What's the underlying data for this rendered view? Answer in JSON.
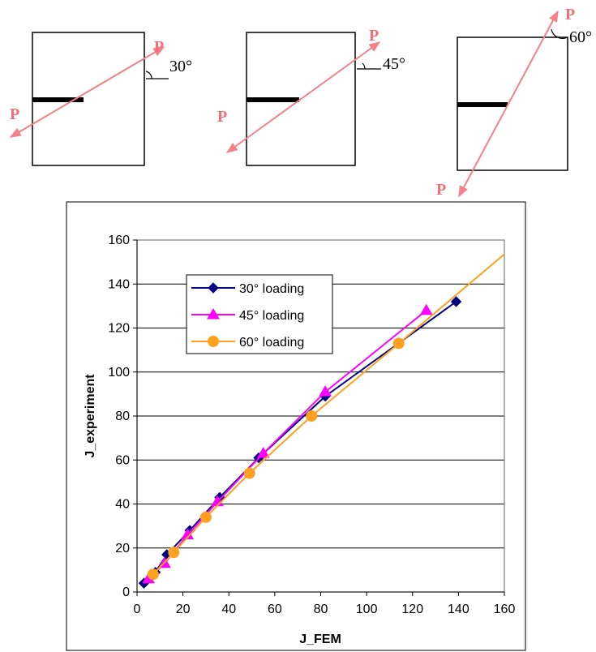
{
  "diagrams": [
    {
      "load_label_top": "P",
      "load_label_bottom": "P",
      "angle_label": "30°"
    },
    {
      "load_label_top": "P",
      "load_label_bottom": "P",
      "angle_label": "45°"
    },
    {
      "load_label_top": "P",
      "load_label_bottom": "P",
      "angle_label": "60°"
    }
  ],
  "colors": {
    "arrow": "#f4808a",
    "series_30": "#000080",
    "series_45": "#ff00ff",
    "series_60": "#ffa020",
    "crack": "#000000"
  },
  "chart_data": {
    "type": "line",
    "title": "",
    "xlabel": "J_FEM",
    "ylabel": "J_experiment",
    "xlim": [
      0,
      160
    ],
    "ylim": [
      0,
      160
    ],
    "xticks": [
      0,
      20,
      40,
      60,
      80,
      100,
      120,
      140,
      160
    ],
    "yticks": [
      0,
      20,
      40,
      60,
      80,
      100,
      120,
      140,
      160
    ],
    "grid": "horizontal",
    "legend_position": "upper-left",
    "series": [
      {
        "name": "30° loading",
        "marker": "diamond",
        "color": "#000080",
        "points": [
          [
            3,
            4
          ],
          [
            8,
            9
          ],
          [
            13,
            17
          ],
          [
            23,
            28
          ],
          [
            36,
            43
          ],
          [
            53,
            61
          ],
          [
            82,
            89
          ],
          [
            139,
            132
          ]
        ]
      },
      {
        "name": "45° loading",
        "marker": "triangle",
        "color": "#ff00ff",
        "points": [
          [
            5,
            6
          ],
          [
            12,
            13
          ],
          [
            22,
            26
          ],
          [
            35,
            41
          ],
          [
            55,
            63
          ],
          [
            82,
            91
          ],
          [
            126,
            128
          ]
        ]
      },
      {
        "name": "60° loading",
        "marker": "circle",
        "color": "#ffa020",
        "points": [
          [
            7,
            8
          ],
          [
            16,
            18
          ],
          [
            30,
            34
          ],
          [
            49,
            54
          ],
          [
            76,
            80
          ],
          [
            114,
            113
          ],
          [
            165,
            158
          ]
        ]
      }
    ]
  }
}
